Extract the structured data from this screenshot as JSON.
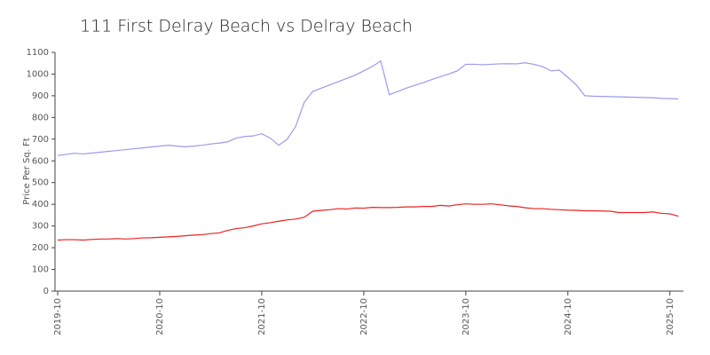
{
  "chart_data": {
    "type": "line",
    "title": "111 First Delray Beach vs Delray Beach",
    "y_label": "Price Per Sq. Ft",
    "x": [
      "2019-10",
      "2019-11",
      "2019-12",
      "2020-01",
      "2020-02",
      "2020-03",
      "2020-04",
      "2020-05",
      "2020-06",
      "2020-07",
      "2020-08",
      "2020-09",
      "2020-10",
      "2020-11",
      "2020-12",
      "2021-01",
      "2021-02",
      "2021-03",
      "2021-04",
      "2021-05",
      "2021-06",
      "2021-07",
      "2021-08",
      "2021-09",
      "2021-10",
      "2021-11",
      "2021-12",
      "2022-01",
      "2022-02",
      "2022-03",
      "2022-04",
      "2022-05",
      "2022-06",
      "2022-07",
      "2022-08",
      "2022-09",
      "2022-10",
      "2022-11",
      "2022-12",
      "2023-01",
      "2023-02",
      "2023-03",
      "2023-04",
      "2023-05",
      "2023-06",
      "2023-07",
      "2023-08",
      "2023-09",
      "2023-10",
      "2023-11",
      "2023-12",
      "2024-01",
      "2024-02",
      "2024-03",
      "2024-04",
      "2024-05",
      "2024-06",
      "2024-07",
      "2024-08",
      "2024-09",
      "2024-10",
      "2024-11",
      "2024-12",
      "2025-01",
      "2025-02",
      "2025-03",
      "2025-04",
      "2025-05",
      "2025-06",
      "2025-07",
      "2025-08",
      "2025-09",
      "2025-10",
      "2025-11"
    ],
    "series": [
      {
        "color": "#9a9aee",
        "values": [
          625,
          630,
          635,
          632,
          636,
          640,
          644,
          648,
          652,
          656,
          660,
          664,
          668,
          672,
          668,
          665,
          668,
          672,
          678,
          682,
          688,
          705,
          712,
          715,
          725,
          705,
          672,
          700,
          760,
          870,
          920,
          935,
          950,
          965,
          980,
          995,
          1015,
          1035,
          1060,
          905,
          920,
          935,
          948,
          960,
          975,
          988,
          1000,
          1015,
          1045,
          1045,
          1043,
          1045,
          1047,
          1048,
          1047,
          1052,
          1045,
          1035,
          1015,
          1018,
          985,
          950,
          900,
          898,
          897,
          896,
          895,
          894,
          893,
          892,
          891,
          888,
          887,
          885
        ]
      },
      {
        "color": "#ee2222",
        "values": [
          235,
          237,
          237,
          235,
          238,
          240,
          240,
          242,
          240,
          242,
          245,
          246,
          248,
          250,
          252,
          255,
          258,
          260,
          265,
          268,
          280,
          288,
          292,
          300,
          310,
          315,
          322,
          328,
          332,
          340,
          368,
          372,
          375,
          380,
          378,
          383,
          382,
          386,
          385,
          385,
          386,
          388,
          388,
          390,
          390,
          395,
          392,
          398,
          402,
          400,
          400,
          402,
          398,
          393,
          390,
          384,
          380,
          380,
          377,
          375,
          373,
          372,
          370,
          370,
          369,
          368,
          362,
          362,
          362,
          362,
          365,
          358,
          356,
          345
        ]
      }
    ],
    "ylim": [
      0,
      1100
    ],
    "yticks": [
      0,
      100,
      200,
      300,
      400,
      500,
      600,
      700,
      800,
      900,
      1000,
      1100
    ],
    "xticks": [
      "2019-10",
      "2020-10",
      "2021-10",
      "2022-10",
      "2023-10",
      "2024-10",
      "2025-10"
    ]
  }
}
